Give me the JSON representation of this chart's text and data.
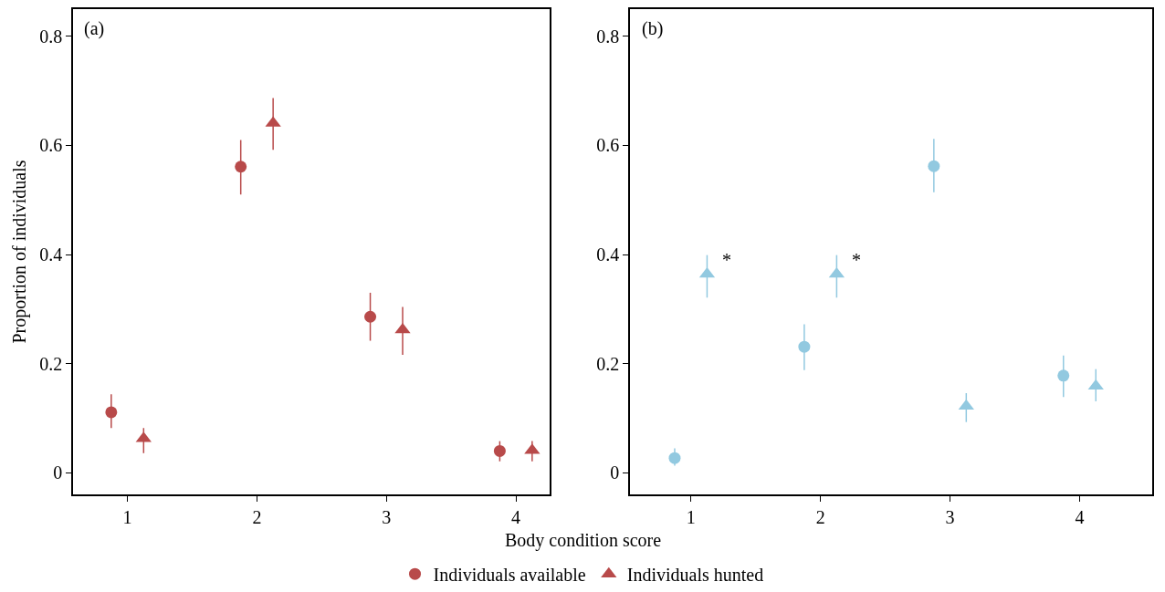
{
  "chart_data": [
    {
      "type": "scatter",
      "xlabel": "Body condition score",
      "ylabel": "Proportion of individuals",
      "annotations": [
        "(a)"
      ],
      "xlim": [
        0.58,
        4.26
      ],
      "ylim": [
        -0.04,
        0.85
      ],
      "xticks": [
        1,
        2,
        3,
        4
      ],
      "yticks": [
        0,
        0.2,
        0.4,
        0.6,
        0.8
      ],
      "legend": "bottom",
      "series": [
        {
          "name": "Individuals available",
          "color": "#b84a4a",
          "marker": "circle",
          "x": [
            0.875,
            1.875,
            2.875,
            3.875
          ],
          "values": [
            0.111,
            0.561,
            0.286,
            0.04
          ],
          "errors": [
            [
              0.082,
              0.144
            ],
            [
              0.51,
              0.61
            ],
            [
              0.242,
              0.33
            ],
            [
              0.021,
              0.058
            ]
          ]
        },
        {
          "name": "Individuals hunted",
          "color": "#b84a4a",
          "marker": "triangle",
          "x": [
            1.125,
            2.125,
            3.125,
            4.125
          ],
          "values": [
            0.063,
            0.641,
            0.262,
            0.041
          ],
          "errors": [
            [
              0.036,
              0.082
            ],
            [
              0.592,
              0.687
            ],
            [
              0.216,
              0.304
            ],
            [
              0.021,
              0.058
            ]
          ]
        }
      ]
    },
    {
      "type": "scatter",
      "annotations": [
        "(b)",
        {
          "text": "*",
          "x": 1.125,
          "y": 0.364
        },
        {
          "text": "*",
          "x": 2.125,
          "y": 0.364
        }
      ],
      "xlim": [
        0.53,
        4.56
      ],
      "ylim": [
        -0.04,
        0.85
      ],
      "xticks": [
        1,
        2,
        3,
        4
      ],
      "yticks": [
        0,
        0.2,
        0.4,
        0.6,
        0.8
      ],
      "series": [
        {
          "color": "#92c9e0",
          "marker": "circle",
          "x": [
            0.875,
            1.875,
            2.875,
            3.875
          ],
          "values": [
            0.027,
            0.231,
            0.562,
            0.178
          ],
          "errors": [
            [
              0.013,
              0.045
            ],
            [
              0.188,
              0.272
            ],
            [
              0.514,
              0.612
            ],
            [
              0.139,
              0.215
            ]
          ]
        },
        {
          "color": "#92c9e0",
          "marker": "triangle",
          "x": [
            1.125,
            2.125,
            3.125,
            4.125
          ],
          "values": [
            0.364,
            0.364,
            0.122,
            0.159
          ],
          "errors": [
            [
              0.321,
              0.399
            ],
            [
              0.321,
              0.399
            ],
            [
              0.093,
              0.146
            ],
            [
              0.131,
              0.19
            ]
          ]
        }
      ]
    }
  ]
}
